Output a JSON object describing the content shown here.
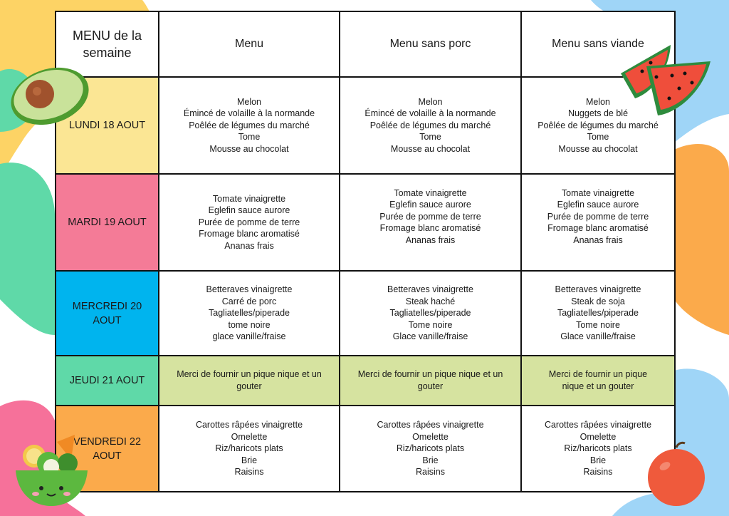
{
  "header": {
    "title": "MENU de la semaine",
    "columns": [
      "Menu",
      "Menu sans porc",
      "Menu sans viande"
    ]
  },
  "days": [
    {
      "label": "LUNDI 18 AOUT",
      "color": "#fbe694",
      "type": "menu",
      "menus": [
        [
          "Melon",
          "Émincé de volaille à la normande",
          "Poêlée de légumes du marché",
          "Tome",
          "Mousse au chocolat"
        ],
        [
          "Melon",
          "Émincé de volaille à la normande",
          "Poêlée de légumes du marché",
          "Tome",
          "Mousse au chocolat"
        ],
        [
          "Melon",
          "Nuggets de blé",
          "Poêlée de légumes du marché",
          "Tome",
          "Mousse au chocolat"
        ]
      ]
    },
    {
      "label": "MARDI 19 AOUT",
      "color": "#f47b97",
      "type": "menu",
      "menus": [
        [
          "Tomate vinaigrette",
          "Eglefin sauce aurore",
          "Purée de pomme de terre",
          "Fromage blanc aromatisé",
          "Ananas frais"
        ],
        [
          "Tomate vinaigrette",
          "Eglefin sauce aurore",
          "Purée de pomme de terre",
          "Fromage blanc aromatisé",
          "Ananas frais"
        ],
        [
          "Tomate vinaigrette",
          "Eglefin sauce aurore",
          "Purée de pomme de terre",
          "Fromage blanc aromatisé",
          "Ananas frais"
        ]
      ]
    },
    {
      "label": "MERCREDI 20 AOUT",
      "color": "#00b4ee",
      "type": "menu",
      "menus": [
        [
          "Betteraves vinaigrette",
          "Carré de porc",
          "Tagliatelles/piperade",
          "tome noire",
          "glace vanille/fraise"
        ],
        [
          "Betteraves vinaigrette",
          "Steak haché",
          "Tagliatelles/piperade",
          "Tome noire",
          "Glace vanille/fraise"
        ],
        [
          "Betteraves vinaigrette",
          "Steak de soja",
          "Tagliatelles/piperade",
          "Tome noire",
          "Glace vanille/fraise"
        ]
      ]
    },
    {
      "label": "JEUDI 21 AOUT",
      "color": "#5fd9a8",
      "type": "picnic",
      "picnic_color": "#d6e3a0",
      "menus": [
        [
          "Merci de fournir un pique nique et un",
          "gouter"
        ],
        [
          "Merci de fournir un pique nique et un",
          "gouter"
        ],
        [
          "Merci de fournir un pique",
          "nique et un gouter"
        ]
      ]
    },
    {
      "label": "VENDREDI 22 AOUT",
      "color": "#fbaa4b",
      "type": "menu",
      "menus": [
        [
          "Carottes râpées vinaigrette",
          "Omelette",
          "Riz/haricots plats",
          "Brie",
          "Raisins"
        ],
        [
          "Carottes râpées vinaigrette",
          "Omelette",
          "Riz/haricots plats",
          "Brie",
          "Raisins"
        ],
        [
          "Carottes râpées vinaigrette",
          "Omelette",
          "Riz/haricots plats",
          "Brie",
          "Raisins"
        ]
      ]
    }
  ],
  "decorations": {
    "icons": [
      "avocado-icon",
      "watermelon-icon",
      "salad-bowl-icon",
      "apple-icon"
    ],
    "blob_colors": [
      "#fdd365",
      "#5fd9a8",
      "#9fd5f7",
      "#f6719a",
      "#fbaa4b"
    ]
  }
}
